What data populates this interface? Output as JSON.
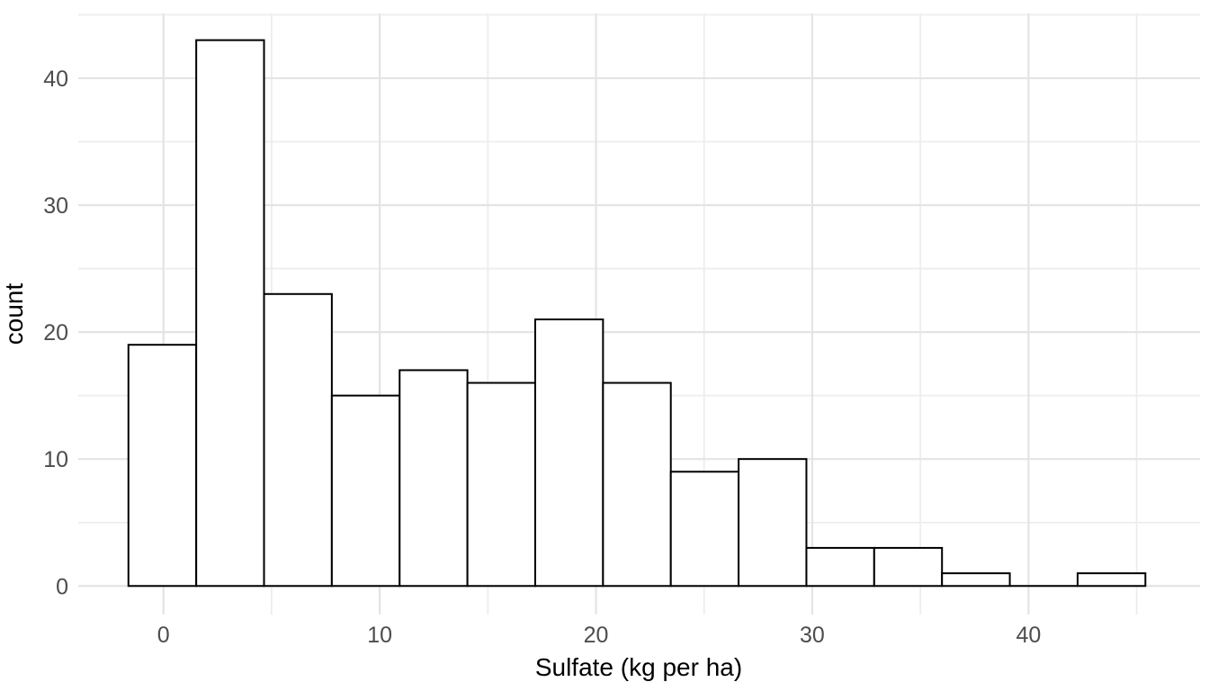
{
  "chart_data": {
    "type": "bar",
    "subtype": "histogram",
    "title": "",
    "x_axis": {
      "label": "Sulfate (kg per ha)",
      "tick_labels": [
        "0",
        "10",
        "20",
        "30",
        "40"
      ],
      "tick_values": [
        0,
        10,
        20,
        30,
        40
      ],
      "minor_values": [
        5,
        15,
        25,
        35,
        45
      ],
      "range": [
        -3.94,
        47.93
      ]
    },
    "y_axis": {
      "label": "count",
      "tick_labels": [
        "0",
        "10",
        "20",
        "30",
        "40"
      ],
      "tick_values": [
        0,
        10,
        20,
        30,
        40
      ],
      "minor_values": [
        5,
        15,
        25,
        35,
        45
      ],
      "range": [
        -2.25,
        45.1
      ]
    },
    "bins": {
      "start": -1.62,
      "width": 3.135,
      "counts": [
        19,
        43,
        23,
        15,
        17,
        16,
        21,
        16,
        9,
        10,
        3,
        3,
        1,
        0,
        1
      ],
      "centers": [
        0,
        3.1,
        6.3,
        9.4,
        12.5,
        15.7,
        18.8,
        22.0,
        25.1,
        28.2,
        31.4,
        34.5,
        37.6,
        40.8,
        43.9
      ]
    },
    "grid": "major+minor",
    "legend": "none",
    "style": {
      "background": "#FFFFFF",
      "bar_fill": "#FFFFFF",
      "bar_stroke": "#000000",
      "grid_major_color": "#E4E4E4",
      "grid_minor_color": "#EDEDED",
      "tick_label_color": "#4D4D4D",
      "axis_title_color": "#000000"
    }
  }
}
